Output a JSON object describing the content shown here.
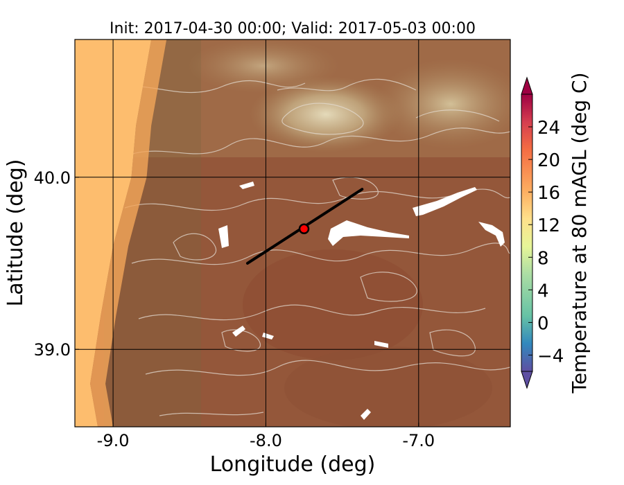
{
  "chart_data": {
    "type": "heatmap",
    "title": "Init: 2017-04-30 00:00; Valid: 2017-05-03 00:00",
    "xlabel": "Longitude (deg)",
    "ylabel": "Latitude (deg)",
    "xlim": [
      -9.25,
      -6.4
    ],
    "ylim": [
      38.55,
      40.8
    ],
    "x_ticks": [
      {
        "value": -9.0,
        "label": "-9.0"
      },
      {
        "value": -8.0,
        "label": "-8.0"
      },
      {
        "value": -7.0,
        "label": "-7.0"
      }
    ],
    "y_ticks": [
      {
        "value": 39.0,
        "label": "39.0"
      },
      {
        "value": 40.0,
        "label": "40.0"
      }
    ],
    "grid": true,
    "colorbar": {
      "label": "Temperature at 80 mAGL (deg C)",
      "range": [
        -6,
        28
      ],
      "extend": "both",
      "ticks": [
        {
          "value": -4,
          "label": "−4"
        },
        {
          "value": 0,
          "label": "0"
        },
        {
          "value": 4,
          "label": "4"
        },
        {
          "value": 8,
          "label": "8"
        },
        {
          "value": 12,
          "label": "12"
        },
        {
          "value": 16,
          "label": "16"
        },
        {
          "value": 20,
          "label": "20"
        },
        {
          "value": 24,
          "label": "24"
        }
      ]
    },
    "cross_section_line": {
      "start": {
        "lon": -8.12,
        "lat": 39.5
      },
      "end": {
        "lon": -7.37,
        "lat": 39.93
      }
    },
    "site_marker": {
      "lon": -7.75,
      "lat": 39.7,
      "color": "#ff0000"
    },
    "coastline_lon_at_lat": [
      {
        "lat": 40.8,
        "lon": -8.75
      },
      {
        "lat": 40.3,
        "lon": -8.85
      },
      {
        "lat": 40.0,
        "lon": -8.88
      },
      {
        "lat": 39.6,
        "lon": -9.0
      },
      {
        "lat": 39.2,
        "lon": -9.08
      },
      {
        "lat": 38.8,
        "lon": -9.15
      },
      {
        "lat": 38.55,
        "lon": -9.1
      }
    ]
  }
}
